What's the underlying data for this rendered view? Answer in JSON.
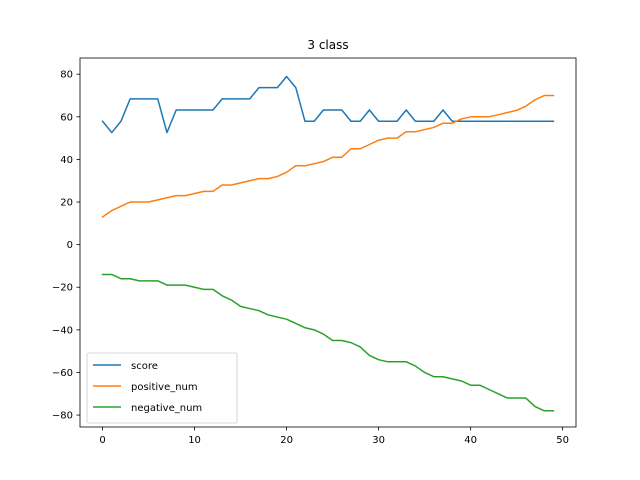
{
  "chart_data": {
    "type": "line",
    "title": "3 class",
    "xlabel": "",
    "ylabel": "",
    "xlim": [
      -2.45,
      51.45
    ],
    "ylim": [
      -85.6,
      87.6
    ],
    "xticks": [
      0,
      10,
      20,
      30,
      40,
      50
    ],
    "yticks": [
      -80,
      -60,
      -40,
      -20,
      0,
      20,
      40,
      60,
      80
    ],
    "grid": false,
    "legend_position": "lower-left",
    "x": [
      0,
      1,
      2,
      3,
      4,
      5,
      6,
      7,
      8,
      9,
      10,
      11,
      12,
      13,
      14,
      15,
      16,
      17,
      18,
      19,
      20,
      21,
      22,
      23,
      24,
      25,
      26,
      27,
      28,
      29,
      30,
      31,
      32,
      33,
      34,
      35,
      36,
      37,
      38,
      39,
      40,
      41,
      42,
      43,
      44,
      45,
      46,
      47,
      48,
      49
    ],
    "series": [
      {
        "name": "score",
        "color": "#1f77b4",
        "values": [
          57.9,
          52.6,
          57.9,
          68.4,
          68.4,
          68.4,
          68.4,
          52.6,
          63.2,
          63.2,
          63.2,
          63.2,
          63.2,
          68.4,
          68.4,
          68.4,
          68.4,
          73.7,
          73.7,
          73.7,
          78.9,
          73.7,
          57.9,
          57.9,
          63.2,
          63.2,
          63.2,
          57.9,
          57.9,
          63.2,
          57.9,
          57.9,
          57.9,
          63.2,
          57.9,
          57.9,
          57.9,
          63.2,
          57.9,
          57.9,
          57.9,
          57.9,
          57.9,
          57.9,
          57.9,
          57.9,
          57.9,
          57.9,
          57.9,
          57.9
        ]
      },
      {
        "name": "positive_num",
        "color": "#ff7f0e",
        "values": [
          13,
          16,
          18,
          20,
          20,
          20,
          21,
          22,
          23,
          23,
          24,
          25,
          25,
          28,
          28,
          29,
          30,
          31,
          31,
          32,
          34,
          37,
          37,
          38,
          39,
          41,
          41,
          45,
          45,
          47,
          49,
          50,
          50,
          53,
          53,
          54,
          55,
          57,
          57,
          59,
          60,
          60,
          60,
          61,
          62,
          63,
          65,
          68,
          70,
          70
        ]
      },
      {
        "name": "negative_num",
        "color": "#2ca02c",
        "values": [
          -14,
          -14,
          -16,
          -16,
          -17,
          -17,
          -17,
          -19,
          -19,
          -19,
          -20,
          -21,
          -21,
          -24,
          -26,
          -29,
          -30,
          -31,
          -33,
          -34,
          -35,
          -37,
          -39,
          -40,
          -42,
          -45,
          -45,
          -46,
          -48,
          -52,
          -54,
          -55,
          -55,
          -55,
          -57,
          -60,
          -62,
          -62,
          -63,
          -64,
          -66,
          -66,
          -68,
          -70,
          -72,
          -72,
          -72,
          -76,
          -78,
          -78
        ]
      }
    ]
  }
}
